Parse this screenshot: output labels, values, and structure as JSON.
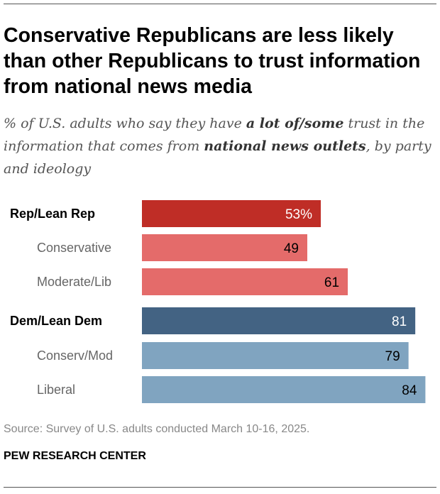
{
  "title": "Conservative Republicans are less likely than other Republicans to trust information from national news media",
  "subtitle": {
    "part1": "% of U.S. adults who say they have ",
    "bold1": "a lot of/some",
    "part2": " trust in the information that comes from ",
    "bold2": "national news outlets",
    "part3": ", by party and ideology"
  },
  "chart_data": {
    "type": "bar",
    "orientation": "horizontal",
    "categories": [
      "Rep/Lean Rep",
      "Conservative",
      "Moderate/Lib",
      "Dem/Lean Dem",
      "Conserv/Mod",
      "Liberal"
    ],
    "values": [
      53,
      49,
      61,
      81,
      79,
      84
    ],
    "labels": [
      "53%",
      "49",
      "61",
      "81",
      "79",
      "84"
    ],
    "group_header": [
      true,
      false,
      false,
      true,
      false,
      false
    ],
    "colors": [
      "#BF2D26",
      "#E46B6A",
      "#E46B6A",
      "#436383",
      "#80A4C0",
      "#80A4C0"
    ],
    "label_colors": [
      "#ffffff",
      "#000000",
      "#000000",
      "#ffffff",
      "#000000",
      "#000000"
    ],
    "xlim": [
      0,
      100
    ],
    "grid": false
  },
  "source": "Source: Survey of U.S. adults conducted March 10-16, 2025.",
  "brand": "PEW RESEARCH CENTER"
}
